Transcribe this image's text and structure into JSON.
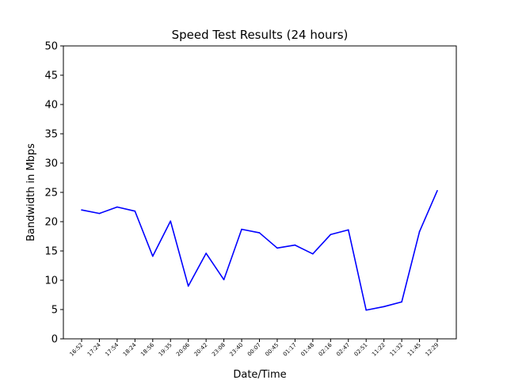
{
  "chart_data": {
    "type": "line",
    "title": "Speed Test Results (24 hours)",
    "xlabel": "Date/Time",
    "ylabel": "Bandwidth in Mbps",
    "ylim": [
      0,
      50
    ],
    "yticks": [
      0,
      5,
      10,
      15,
      20,
      25,
      30,
      35,
      40,
      45,
      50
    ],
    "grid": false,
    "categories": [
      "16:52",
      "17:24",
      "17:54",
      "18:24",
      "18:56",
      "19:35",
      "20:06",
      "20:42",
      "23:08",
      "23:40",
      "00:07",
      "00:45",
      "01:17",
      "01:48",
      "02:16",
      "02:47",
      "02:51",
      "11:22",
      "11:32",
      "11:45",
      "12:29"
    ],
    "series": [
      {
        "color": "#0000ff",
        "values": [
          22.0,
          21.4,
          22.5,
          21.8,
          14.1,
          20.1,
          9.0,
          14.6,
          10.1,
          18.7,
          18.1,
          15.5,
          16.0,
          14.5,
          17.8,
          18.6,
          4.9,
          5.5,
          6.3,
          18.3,
          25.3
        ]
      }
    ]
  }
}
